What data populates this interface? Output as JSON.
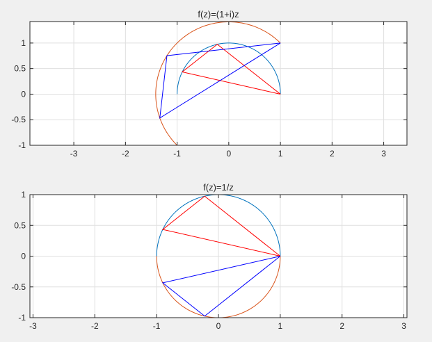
{
  "chart_data": [
    {
      "type": "line",
      "title": "f(z)=(1+i)z",
      "xlim": [
        -3.85,
        3.45
      ],
      "ylim": [
        -1,
        1.42
      ],
      "xticks": [
        -3,
        -2,
        -1,
        0,
        1,
        2,
        3
      ],
      "yticks": [
        -1,
        -0.5,
        0,
        0.5,
        1
      ],
      "grid": true,
      "series": [
        {
          "kind": "arc",
          "color": "#0072BD",
          "center": [
            0,
            0
          ],
          "radius": 1,
          "from_deg": 0,
          "to_deg": 180
        },
        {
          "kind": "arc",
          "color": "#D95319",
          "center": [
            0,
            0
          ],
          "radius": 1.41421356,
          "from_deg": 45,
          "to_deg": 225
        },
        {
          "kind": "polyline",
          "color": "#FF0000",
          "points": [
            [
              1,
              0
            ],
            [
              -0.2225,
              0.9749
            ],
            [
              -0.901,
              0.4339
            ],
            [
              1,
              0
            ]
          ]
        },
        {
          "kind": "polyline",
          "color": "#0000FF",
          "points": [
            [
              1,
              1
            ],
            [
              -1.1974,
              0.7524
            ],
            [
              -1.3349,
              -0.4671
            ],
            [
              1,
              1
            ]
          ]
        }
      ]
    },
    {
      "type": "line",
      "title": "f(z)=1/z",
      "xlim": [
        -3.05,
        3.05
      ],
      "ylim": [
        -1,
        1
      ],
      "xticks": [
        -3,
        -2,
        -1,
        0,
        1,
        2,
        3
      ],
      "yticks": [
        -1,
        -0.5,
        0,
        0.5,
        1
      ],
      "grid": true,
      "series": [
        {
          "kind": "arc",
          "color": "#0072BD",
          "center": [
            0,
            0
          ],
          "radius": 1,
          "from_deg": 0,
          "to_deg": 180
        },
        {
          "kind": "arc",
          "color": "#D95319",
          "center": [
            0,
            0
          ],
          "radius": 1,
          "from_deg": 180,
          "to_deg": 360
        },
        {
          "kind": "polyline",
          "color": "#FF0000",
          "points": [
            [
              1,
              0
            ],
            [
              -0.2225,
              0.9749
            ],
            [
              -0.901,
              0.4339
            ],
            [
              1,
              0
            ]
          ]
        },
        {
          "kind": "polyline",
          "color": "#0000FF",
          "points": [
            [
              1,
              0
            ],
            [
              -0.2225,
              -0.9749
            ],
            [
              -0.901,
              -0.4339
            ],
            [
              1,
              0
            ]
          ]
        }
      ]
    }
  ]
}
